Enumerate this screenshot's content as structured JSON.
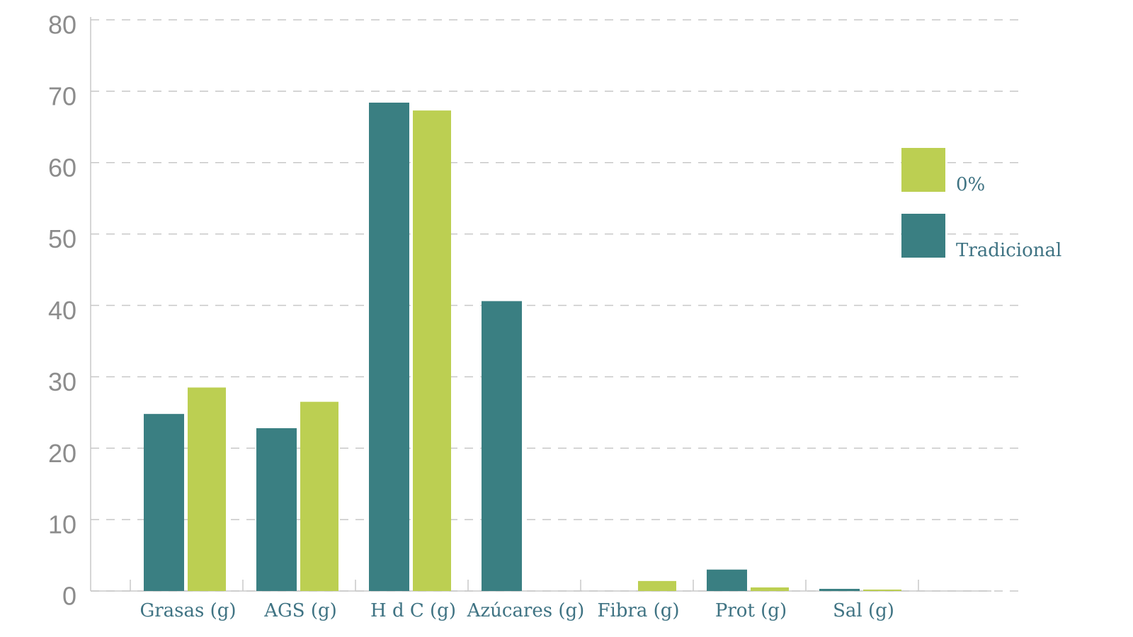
{
  "chart_data": {
    "type": "bar",
    "categories": [
      "Grasas (g)",
      "AGS (g)",
      "H d C (g)",
      "Azúcares (g)",
      "Fibra (g)",
      "Prot (g)",
      "Sal (g)"
    ],
    "series": [
      {
        "name": "Tradicional",
        "color": "#3a7f82",
        "values": [
          24.8,
          22.8,
          68.4,
          40.6,
          0,
          3,
          0.3
        ]
      },
      {
        "name": "0%",
        "color": "#bccf52",
        "values": [
          28.5,
          26.5,
          67.3,
          0,
          1.4,
          0.5,
          0.2
        ]
      }
    ],
    "ylim": [
      0,
      80
    ],
    "yticks": [
      0,
      10,
      20,
      30,
      40,
      50,
      60,
      70,
      80
    ],
    "grid": true
  }
}
